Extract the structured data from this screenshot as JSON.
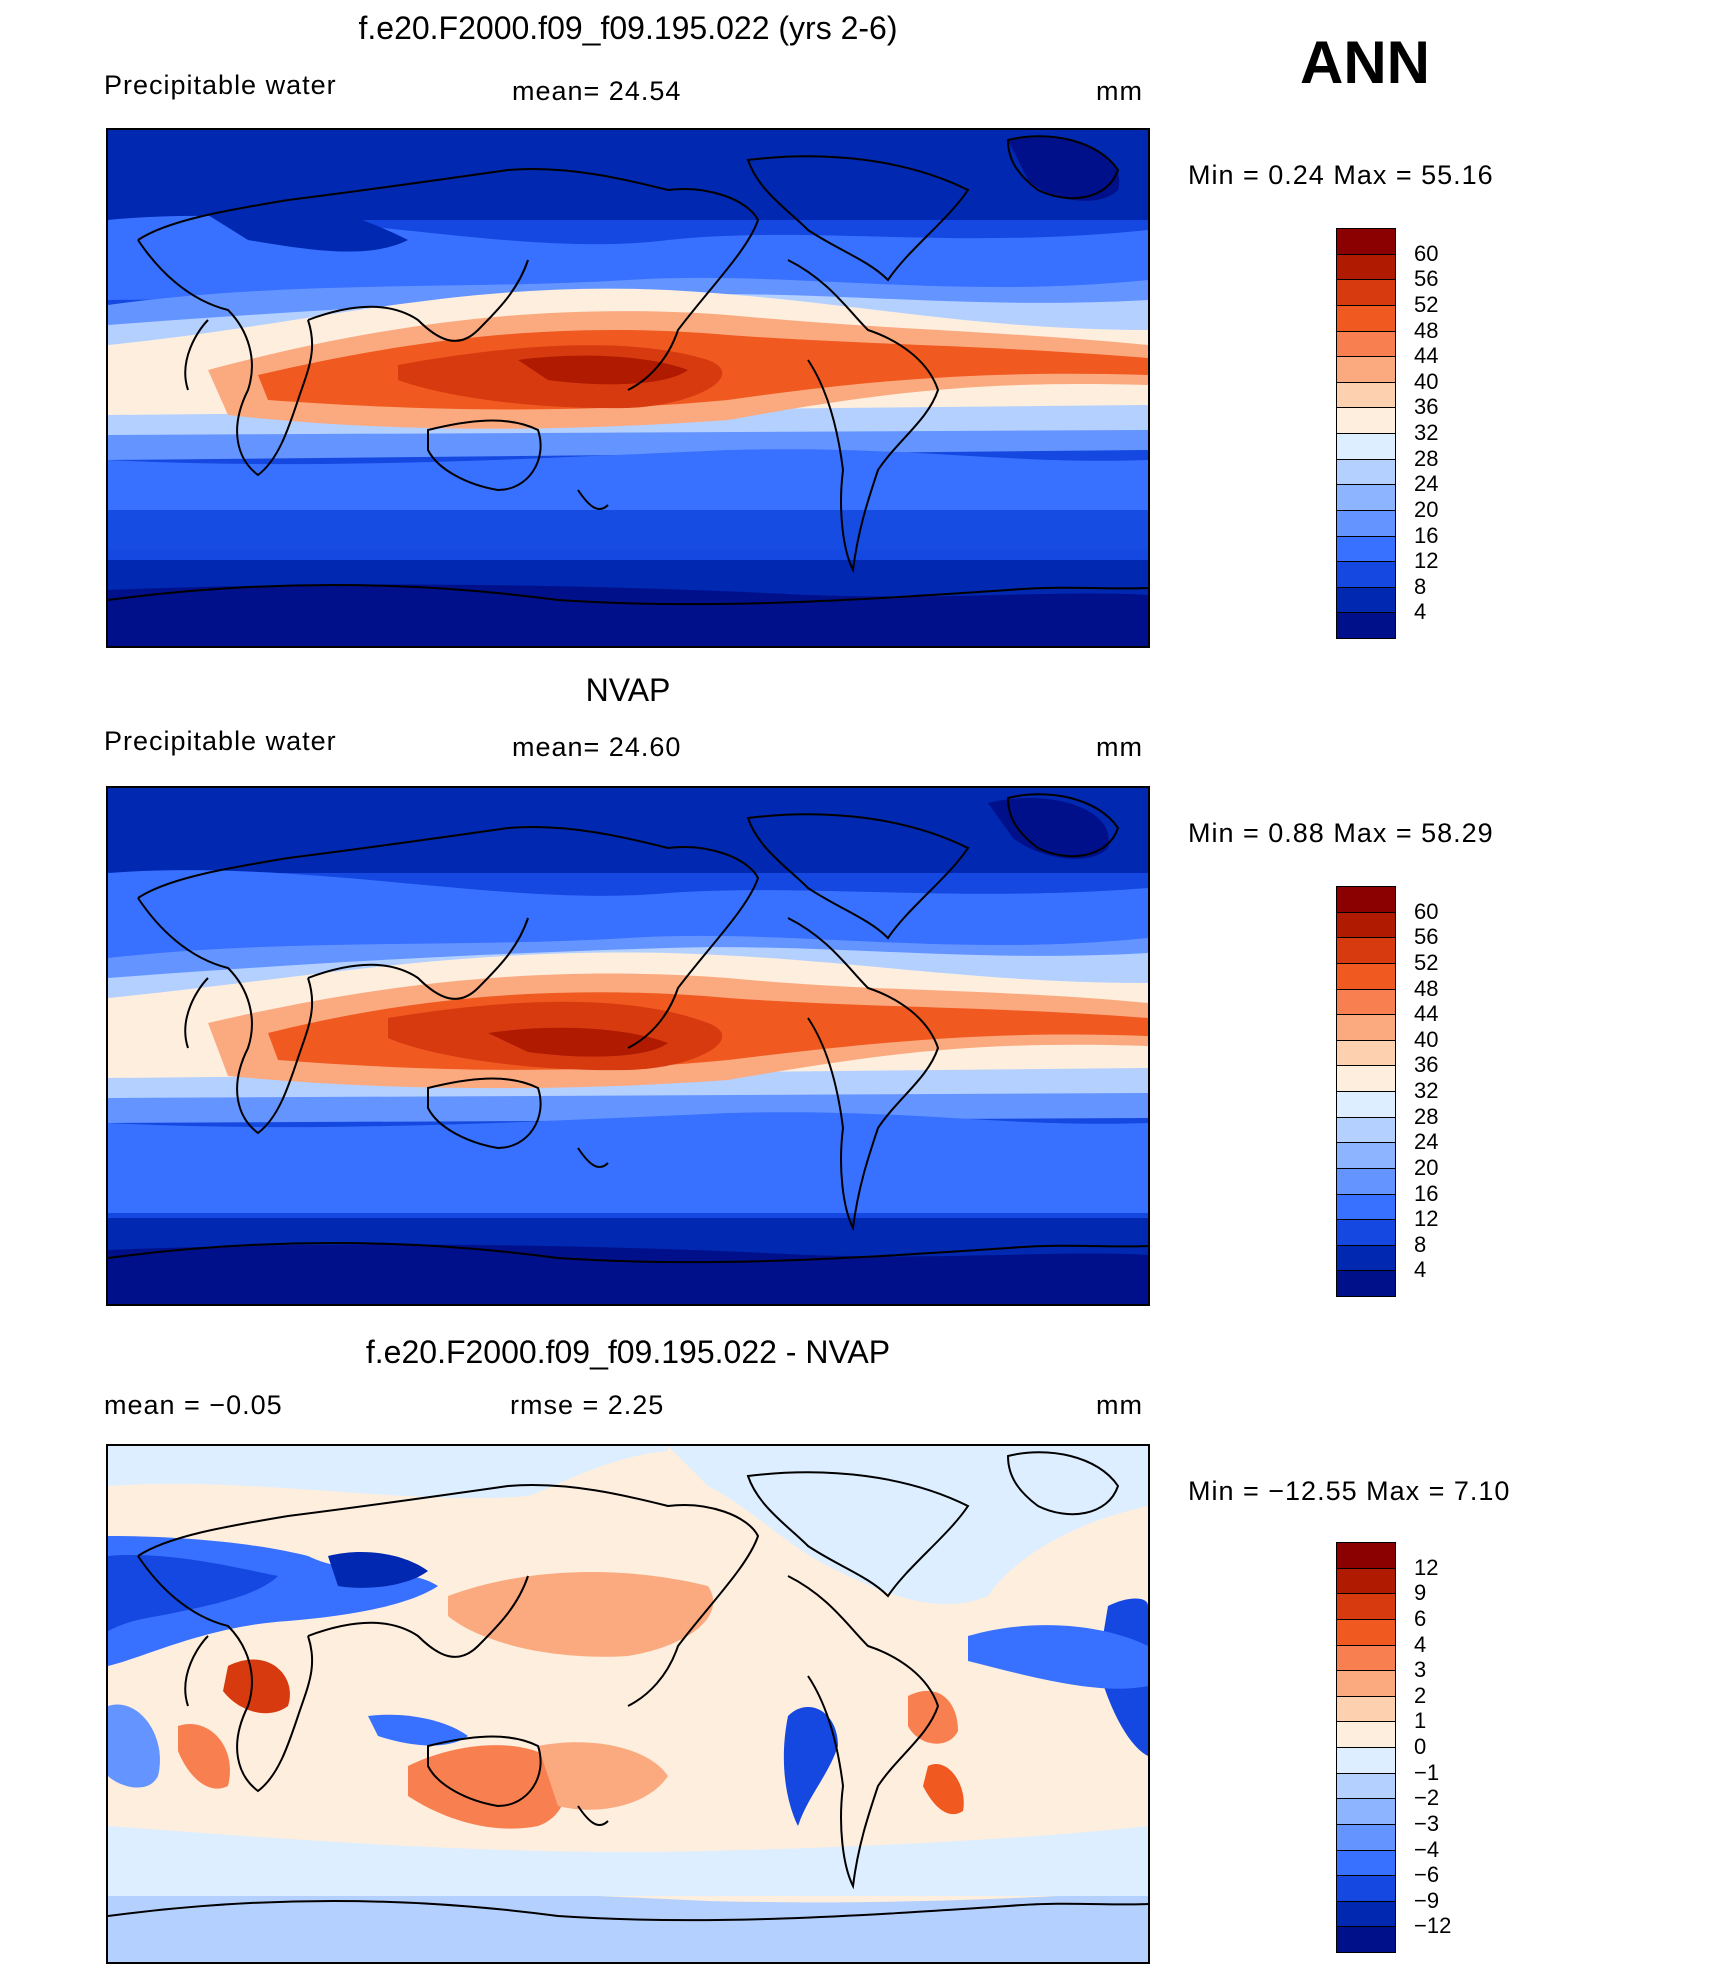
{
  "season": "ANN",
  "panels": [
    {
      "title": "f.e20.F2000.f09_f09.195.022 (yrs 2-6)",
      "left_label": "Precipitable  water",
      "center_label": "mean=   24.54",
      "units": "mm",
      "minmax": "Min  =     0.24  Max  =    55.16",
      "colorbar": {
        "levels": [
          "60",
          "56",
          "52",
          "48",
          "44",
          "40",
          "36",
          "32",
          "28",
          "24",
          "20",
          "16",
          "12",
          "8",
          "4"
        ],
        "colors": [
          "#8b0000",
          "#b01a00",
          "#d83a10",
          "#f05a20",
          "#f88050",
          "#fbaa80",
          "#fdd0b0",
          "#fdeede",
          "#dceeff",
          "#b4d0ff",
          "#8cb4ff",
          "#6494ff",
          "#3870ff",
          "#1448e0",
          "#0028b0",
          "#00108a"
        ]
      }
    },
    {
      "title": "NVAP",
      "left_label": "Precipitable  water",
      "center_label": "mean=   24.60",
      "units": "mm",
      "minmax": "Min  =     0.88  Max  =    58.29",
      "colorbar": {
        "levels": [
          "60",
          "56",
          "52",
          "48",
          "44",
          "40",
          "36",
          "32",
          "28",
          "24",
          "20",
          "16",
          "12",
          "8",
          "4"
        ],
        "colors": [
          "#8b0000",
          "#b01a00",
          "#d83a10",
          "#f05a20",
          "#f88050",
          "#fbaa80",
          "#fdd0b0",
          "#fdeede",
          "#dceeff",
          "#b4d0ff",
          "#8cb4ff",
          "#6494ff",
          "#3870ff",
          "#1448e0",
          "#0028b0",
          "#00108a"
        ]
      }
    },
    {
      "title": "f.e20.F2000.f09_f09.195.022 - NVAP",
      "left_label": "mean  =     −0.05",
      "center_label": "rmse  =       2.25",
      "units": "mm",
      "minmax": "Min  =  −12.55  Max  =       7.10",
      "colorbar": {
        "levels": [
          "12",
          "9",
          "6",
          "4",
          "3",
          "2",
          "1",
          "0",
          "−1",
          "−2",
          "−3",
          "−4",
          "−6",
          "−9",
          "−12"
        ],
        "colors": [
          "#8b0000",
          "#b01a00",
          "#d83a10",
          "#f05a20",
          "#f88050",
          "#fbaa80",
          "#fdd0b0",
          "#fdeede",
          "#dceeff",
          "#b4d0ff",
          "#8cb4ff",
          "#6494ff",
          "#3870ff",
          "#1448e0",
          "#0028b0",
          "#00108a"
        ]
      }
    }
  ]
}
